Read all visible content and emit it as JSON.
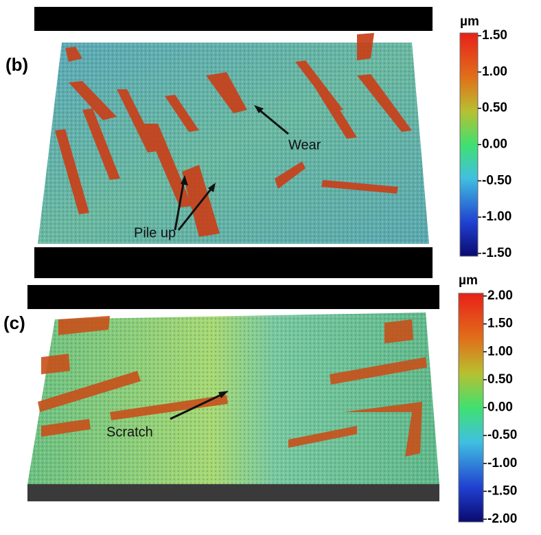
{
  "panels": [
    {
      "label": "(b)",
      "annotations": [
        "Wear",
        "Pile up"
      ],
      "colorbar": {
        "unit": "µm",
        "ticks": [
          {
            "value": 1.5,
            "label": "1.50"
          },
          {
            "value": 1,
            "label": "1.00"
          },
          {
            "value": 0.5,
            "label": "0.50"
          },
          {
            "value": 0,
            "label": "0.00"
          },
          {
            "value": -0.5,
            "label": "-0.50"
          },
          {
            "value": -1,
            "label": "-1.00"
          },
          {
            "value": -1.5,
            "label": "-1.50"
          }
        ]
      }
    },
    {
      "label": "(c)",
      "annotations": [
        "Scratch"
      ],
      "colorbar": {
        "unit": "µm",
        "ticks": [
          {
            "value": 2,
            "label": "2.00"
          },
          {
            "value": 1.5,
            "label": "1.50"
          },
          {
            "value": 1,
            "label": "1.00"
          },
          {
            "value": 0.5,
            "label": "0.50"
          },
          {
            "value": 0,
            "label": "0.00"
          },
          {
            "value": -0.5,
            "label": "-0.50"
          },
          {
            "value": -1,
            "label": "-1.00"
          },
          {
            "value": -1.5,
            "label": "-1.50"
          },
          {
            "value": -2,
            "label": "-2.00"
          }
        ]
      }
    }
  ]
}
